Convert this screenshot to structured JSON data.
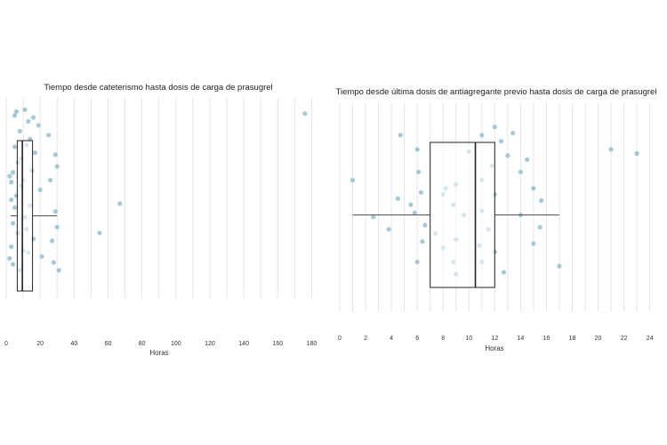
{
  "chart_data": [
    {
      "type": "boxplot",
      "title": "Tiempo desde cateterismo hasta dosis de carga de prasugrel",
      "xlabel": "Horas",
      "xlim": [
        0,
        185
      ],
      "xticks": [
        0,
        20,
        40,
        60,
        80,
        100,
        120,
        140,
        160,
        180
      ],
      "grid": true,
      "point_color": "#7fb3c6",
      "box": {
        "q1": 6.5,
        "median": 9.5,
        "q3": 15.5,
        "whisker_low": 2.5,
        "whisker_high": 30
      },
      "points": [
        {
          "x": 176,
          "y": 0.92
        },
        {
          "x": 67,
          "y": 0.46
        },
        {
          "x": 55,
          "y": 0.31
        },
        {
          "x": 31,
          "y": 0.12
        },
        {
          "x": 29,
          "y": 0.71
        },
        {
          "x": 30,
          "y": 0.65
        },
        {
          "x": 26,
          "y": 0.58
        },
        {
          "x": 29,
          "y": 0.42
        },
        {
          "x": 30,
          "y": 0.34
        },
        {
          "x": 27,
          "y": 0.27
        },
        {
          "x": 28,
          "y": 0.16
        },
        {
          "x": 21,
          "y": 0.19
        },
        {
          "x": 25,
          "y": 0.81
        },
        {
          "x": 19,
          "y": 0.86
        },
        {
          "x": 20,
          "y": 0.53
        },
        {
          "x": 17,
          "y": 0.72
        },
        {
          "x": 16,
          "y": 0.28
        },
        {
          "x": 15,
          "y": 0.63
        },
        {
          "x": 14,
          "y": 0.45
        },
        {
          "x": 13,
          "y": 0.88
        },
        {
          "x": 12,
          "y": 0.76
        },
        {
          "x": 11,
          "y": 0.39
        },
        {
          "x": 10,
          "y": 0.22
        },
        {
          "x": 9,
          "y": 0.55
        },
        {
          "x": 8,
          "y": 0.83
        },
        {
          "x": 7,
          "y": 0.67
        },
        {
          "x": 6,
          "y": 0.93
        },
        {
          "x": 5,
          "y": 0.91
        },
        {
          "x": 4,
          "y": 0.62
        },
        {
          "x": 3,
          "y": 0.57
        },
        {
          "x": 2,
          "y": 0.6
        },
        {
          "x": 3,
          "y": 0.48
        },
        {
          "x": 4,
          "y": 0.36
        },
        {
          "x": 3,
          "y": 0.24
        },
        {
          "x": 2,
          "y": 0.18
        },
        {
          "x": 4,
          "y": 0.15
        },
        {
          "x": 5,
          "y": 0.75
        },
        {
          "x": 6,
          "y": 0.5
        },
        {
          "x": 7,
          "y": 0.31
        },
        {
          "x": 8,
          "y": 0.12
        },
        {
          "x": 9,
          "y": 0.69
        },
        {
          "x": 11,
          "y": 0.94
        },
        {
          "x": 13,
          "y": 0.21
        },
        {
          "x": 14,
          "y": 0.79
        },
        {
          "x": 12,
          "y": 0.33
        },
        {
          "x": 10,
          "y": 0.58
        },
        {
          "x": 16,
          "y": 0.9
        },
        {
          "x": 5,
          "y": 0.44
        }
      ]
    },
    {
      "type": "boxplot",
      "title": "Tiempo desde última dosis de antiagregante previo hasta dosis de carga de prasugrel",
      "xlabel": "Horas",
      "xlim": [
        0,
        24.3
      ],
      "xticks": [
        0,
        2,
        4,
        6,
        8,
        10,
        12,
        14,
        16,
        18,
        20,
        22,
        24
      ],
      "grid": true,
      "point_color": "#7fb3c6",
      "box": {
        "q1": 7,
        "median": 10.5,
        "q3": 12,
        "whisker_low": 1,
        "whisker_high": 17
      },
      "points": [
        {
          "x": 1,
          "y": 0.62
        },
        {
          "x": 2.6,
          "y": 0.44
        },
        {
          "x": 3.8,
          "y": 0.38
        },
        {
          "x": 4.5,
          "y": 0.53
        },
        {
          "x": 4.7,
          "y": 0.84
        },
        {
          "x": 5.5,
          "y": 0.5
        },
        {
          "x": 5.8,
          "y": 0.46
        },
        {
          "x": 6,
          "y": 0.22
        },
        {
          "x": 6.1,
          "y": 0.66
        },
        {
          "x": 6.3,
          "y": 0.56
        },
        {
          "x": 6.4,
          "y": 0.32
        },
        {
          "x": 6.6,
          "y": 0.4
        },
        {
          "x": 6,
          "y": 0.77
        },
        {
          "x": 7.4,
          "y": 0.36
        },
        {
          "x": 8,
          "y": 0.29
        },
        {
          "x": 8,
          "y": 0.55
        },
        {
          "x": 8.2,
          "y": 0.58
        },
        {
          "x": 8.8,
          "y": 0.5
        },
        {
          "x": 8.8,
          "y": 0.22
        },
        {
          "x": 9,
          "y": 0.16
        },
        {
          "x": 9,
          "y": 0.33
        },
        {
          "x": 9,
          "y": 0.6
        },
        {
          "x": 9.6,
          "y": 0.45
        },
        {
          "x": 10,
          "y": 0.76
        },
        {
          "x": 10.8,
          "y": 0.3
        },
        {
          "x": 11,
          "y": 0.84
        },
        {
          "x": 11,
          "y": 0.62
        },
        {
          "x": 11,
          "y": 0.47
        },
        {
          "x": 11.5,
          "y": 0.38
        },
        {
          "x": 11.8,
          "y": 0.69
        },
        {
          "x": 12,
          "y": 0.88
        },
        {
          "x": 12,
          "y": 0.55
        },
        {
          "x": 12,
          "y": 0.27
        },
        {
          "x": 12.5,
          "y": 0.81
        },
        {
          "x": 12.7,
          "y": 0.17
        },
        {
          "x": 13,
          "y": 0.74
        },
        {
          "x": 13.4,
          "y": 0.85
        },
        {
          "x": 14,
          "y": 0.45
        },
        {
          "x": 14,
          "y": 0.66
        },
        {
          "x": 14.5,
          "y": 0.72
        },
        {
          "x": 15,
          "y": 0.58
        },
        {
          "x": 15,
          "y": 0.31
        },
        {
          "x": 15.5,
          "y": 0.39
        },
        {
          "x": 15.6,
          "y": 0.52
        },
        {
          "x": 17,
          "y": 0.2
        },
        {
          "x": 21,
          "y": 0.77
        },
        {
          "x": 23,
          "y": 0.75
        },
        {
          "x": 11,
          "y": 0.22
        }
      ]
    }
  ]
}
